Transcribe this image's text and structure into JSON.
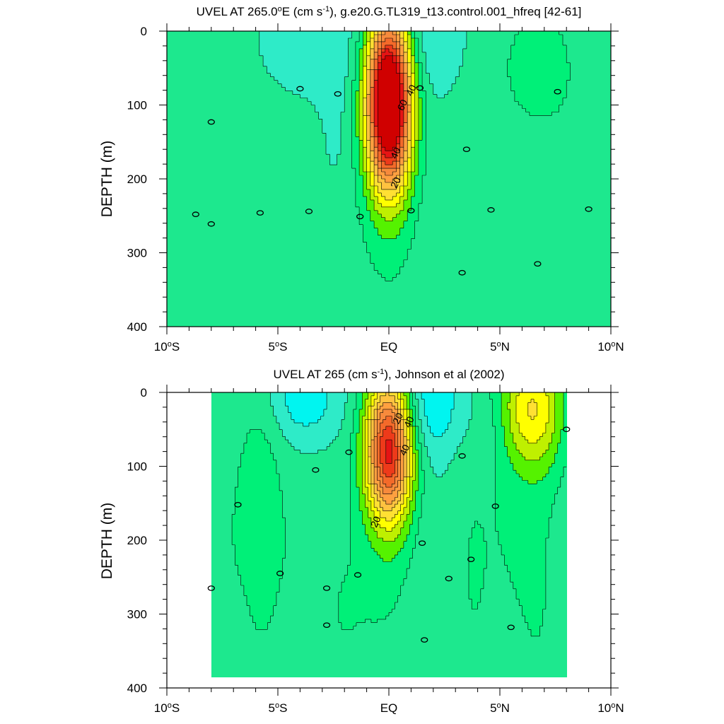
{
  "colors": {
    "level_fill": [
      "#1E96FF",
      "#33DDFF",
      "#00F5F0",
      "#2EEBC8",
      "#1DE88E",
      "#00F078",
      "#55F200",
      "#BFF000",
      "#FFFF00",
      "#FFE033",
      "#FFC240",
      "#FFA040",
      "#F78A3C",
      "#F46A2A",
      "#EE3A1A",
      "#E61414",
      "#D00000"
    ],
    "contour_line": "#000000",
    "missing": "#ffffff"
  },
  "chart_data": [
    {
      "type": "contour",
      "title": "UVEL AT 265.0°E (cm s-1), g.e20.G.TL319_t13.control.001_hfreq [42-61]",
      "title_parts": {
        "pre": "UVEL AT 265.0",
        "deg": "o",
        "mid": "E (cm s",
        "sup": "-1",
        "post": "), g.e20.G.TL319_t13.control.001_hfreq [42-61]"
      },
      "ylabel": "DEPTH (m)",
      "xlabel": "",
      "x_ticks": [
        {
          "v": -10,
          "num": "10",
          "hemi": "S"
        },
        {
          "v": -5,
          "num": "5",
          "hemi": "S"
        },
        {
          "v": 0,
          "num": "EQ",
          "hemi": ""
        },
        {
          "v": 5,
          "num": "5",
          "hemi": "N"
        },
        {
          "v": 10,
          "num": "10",
          "hemi": "N"
        }
      ],
      "y_ticks": [
        0,
        100,
        200,
        300,
        400
      ],
      "xlim": [
        -10,
        10
      ],
      "ylim": [
        400,
        0
      ],
      "contour_interval": 5,
      "data_extent_lat": [
        -10,
        10
      ],
      "max_depth": 400,
      "features": [
        {
          "kind": "background",
          "value": 0
        },
        {
          "kind": "blob",
          "lat": -4.0,
          "depth": 300,
          "slat": 1.4,
          "sdep": 170,
          "amp": 4.5
        },
        {
          "kind": "blob",
          "lat": -8.0,
          "depth": 260,
          "slat": 1.2,
          "sdep": 200,
          "amp": 4.0
        },
        {
          "kind": "blob",
          "lat": -9.2,
          "depth": 50,
          "slat": 0.6,
          "sdep": 20,
          "amp": 1.5
        },
        {
          "kind": "blob",
          "lat": 4.5,
          "depth": 250,
          "slat": 1.5,
          "sdep": 220,
          "amp": 4.0
        },
        {
          "kind": "blob",
          "lat": 8.3,
          "depth": 250,
          "slat": 1.6,
          "sdep": 220,
          "amp": 4.5
        },
        {
          "kind": "blob",
          "lat": 6.7,
          "depth": 40,
          "slat": 0.9,
          "sdep": 45,
          "amp": 6.5
        },
        {
          "kind": "blob",
          "lat": 0,
          "depth": 280,
          "slat": 1.2,
          "sdep": 120,
          "amp": 4.5
        },
        {
          "kind": "blob",
          "lat": -3.3,
          "depth": 20,
          "slat": 1.4,
          "sdep": 60,
          "amp": -4.5
        },
        {
          "kind": "blob",
          "lat": 1.8,
          "depth": 15,
          "slat": 1.1,
          "sdep": 50,
          "amp": -5.5
        },
        {
          "kind": "blob",
          "lat": -2.5,
          "depth": 160,
          "slat": 0.5,
          "sdep": 60,
          "amp": -2.5
        },
        {
          "kind": "blob",
          "lat": 0,
          "depth": 95,
          "slat": 0.7,
          "sdep": 80,
          "amp": 82
        }
      ],
      "contour_labels": [
        {
          "lat": -8.0,
          "depth": 123,
          "text": "0"
        },
        {
          "lat": -4.0,
          "depth": 78,
          "text": "0"
        },
        {
          "lat": -2.3,
          "depth": 85,
          "text": "0"
        },
        {
          "lat": 1.4,
          "depth": 77,
          "text": "0"
        },
        {
          "lat": 7.6,
          "depth": 82,
          "text": "0"
        },
        {
          "lat": -8.7,
          "depth": 248,
          "text": "0"
        },
        {
          "lat": -8.0,
          "depth": 261,
          "text": "0"
        },
        {
          "lat": -5.8,
          "depth": 246,
          "text": "0"
        },
        {
          "lat": -3.6,
          "depth": 244,
          "text": "0"
        },
        {
          "lat": -1.3,
          "depth": 251,
          "text": "0"
        },
        {
          "lat": 1.0,
          "depth": 243,
          "text": "0"
        },
        {
          "lat": 3.5,
          "depth": 160,
          "text": "0"
        },
        {
          "lat": 4.6,
          "depth": 242,
          "text": "0"
        },
        {
          "lat": 9.0,
          "depth": 241,
          "text": "0"
        },
        {
          "lat": 3.3,
          "depth": 327,
          "text": "0"
        },
        {
          "lat": 6.7,
          "depth": 315,
          "text": "0"
        },
        {
          "lat": 0.3,
          "depth": 205,
          "text": "20"
        },
        {
          "lat": 0.3,
          "depth": 165,
          "text": "40"
        },
        {
          "lat": 0.6,
          "depth": 100,
          "text": "60"
        },
        {
          "lat": 1.0,
          "depth": 80,
          "text": "40"
        }
      ]
    },
    {
      "type": "contour",
      "title": "UVEL AT 265 (cm s-1), Johnson et al (2002)",
      "title_parts": {
        "pre": "UVEL AT 265",
        "deg": "",
        "mid": " (cm s",
        "sup": "-1",
        "post": "), Johnson et al (2002)"
      },
      "ylabel": "DEPTH (m)",
      "xlabel": "",
      "x_ticks": [
        {
          "v": -10,
          "num": "10",
          "hemi": "S"
        },
        {
          "v": -5,
          "num": "5",
          "hemi": "S"
        },
        {
          "v": 0,
          "num": "EQ",
          "hemi": ""
        },
        {
          "v": 5,
          "num": "5",
          "hemi": "N"
        },
        {
          "v": 10,
          "num": "10",
          "hemi": "N"
        }
      ],
      "y_ticks": [
        0,
        100,
        200,
        300,
        400
      ],
      "xlim": [
        -10,
        10
      ],
      "ylim": [
        400,
        0
      ],
      "contour_interval": 5,
      "data_extent_lat": [
        -8,
        8
      ],
      "max_depth": 385,
      "features": [
        {
          "kind": "background",
          "value": 0
        },
        {
          "kind": "blob",
          "lat": -5.8,
          "depth": 150,
          "slat": 0.7,
          "sdep": 120,
          "amp": 7.0
        },
        {
          "kind": "blob",
          "lat": -4.4,
          "depth": 300,
          "slat": 1.2,
          "sdep": 160,
          "amp": 4.0
        },
        {
          "kind": "blob",
          "lat": -7.5,
          "depth": 250,
          "slat": 0.9,
          "sdep": 200,
          "amp": 4.0
        },
        {
          "kind": "blob",
          "lat": -2.0,
          "depth": 300,
          "slat": 1.0,
          "sdep": 150,
          "amp": 4.0
        },
        {
          "kind": "blob",
          "lat": 3.5,
          "depth": 250,
          "slat": 0.7,
          "sdep": 200,
          "amp": 3.5
        },
        {
          "kind": "blob",
          "lat": 5.2,
          "depth": 200,
          "slat": 1.1,
          "sdep": 250,
          "amp": 4.5
        },
        {
          "kind": "blob",
          "lat": 7.0,
          "depth": 250,
          "slat": 0.8,
          "sdep": 200,
          "amp": 4.0
        },
        {
          "kind": "blob",
          "lat": 6.5,
          "depth": 20,
          "slat": 1.0,
          "sdep": 60,
          "amp": 22
        },
        {
          "kind": "blob",
          "lat": 0,
          "depth": 260,
          "slat": 1.0,
          "sdep": 100,
          "amp": 4.5
        },
        {
          "kind": "blob",
          "lat": -3.8,
          "depth": 10,
          "slat": 1.1,
          "sdep": 40,
          "amp": -9.0
        },
        {
          "kind": "blob",
          "lat": 1.8,
          "depth": 15,
          "slat": 1.2,
          "sdep": 50,
          "amp": -10.0
        },
        {
          "kind": "blob",
          "lat": 4.5,
          "depth": 60,
          "slat": 0.6,
          "sdep": 40,
          "amp": -3.0
        },
        {
          "kind": "blob",
          "lat": -7.2,
          "depth": 330,
          "slat": 0.5,
          "sdep": 50,
          "amp": -2.5
        },
        {
          "kind": "blob",
          "lat": -4.5,
          "depth": 340,
          "slat": 0.5,
          "sdep": 60,
          "amp": -2.5
        },
        {
          "kind": "blob",
          "lat": 0,
          "depth": 75,
          "slat": 0.75,
          "sdep": 70,
          "amp": 57
        }
      ],
      "contour_labels": [
        {
          "lat": -8.0,
          "depth": 265,
          "text": "0"
        },
        {
          "lat": -6.8,
          "depth": 152,
          "text": "0"
        },
        {
          "lat": -3.3,
          "depth": 105,
          "text": "0"
        },
        {
          "lat": -1.8,
          "depth": 81,
          "text": "0"
        },
        {
          "lat": 3.3,
          "depth": 86,
          "text": "0"
        },
        {
          "lat": 8.0,
          "depth": 50,
          "text": "0"
        },
        {
          "lat": 4.8,
          "depth": 154,
          "text": "0"
        },
        {
          "lat": -4.9,
          "depth": 245,
          "text": "0"
        },
        {
          "lat": -2.8,
          "depth": 265,
          "text": "0"
        },
        {
          "lat": -1.4,
          "depth": 247,
          "text": "0"
        },
        {
          "lat": 1.5,
          "depth": 204,
          "text": "0"
        },
        {
          "lat": 2.7,
          "depth": 252,
          "text": "0"
        },
        {
          "lat": 3.7,
          "depth": 226,
          "text": "0"
        },
        {
          "lat": 5.5,
          "depth": 318,
          "text": "0"
        },
        {
          "lat": -2.8,
          "depth": 315,
          "text": "0"
        },
        {
          "lat": 1.6,
          "depth": 335,
          "text": "0"
        },
        {
          "lat": -0.6,
          "depth": 175,
          "text": "20"
        },
        {
          "lat": 0.4,
          "depth": 35,
          "text": "20"
        },
        {
          "lat": 0.9,
          "depth": 40,
          "text": "40"
        },
        {
          "lat": 0.7,
          "depth": 78,
          "text": "40"
        }
      ]
    }
  ]
}
